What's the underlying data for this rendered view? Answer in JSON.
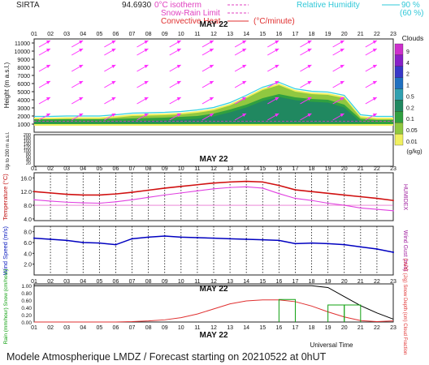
{
  "header": {
    "station": "SIRTA",
    "elevation_text": "94.6930",
    "legend": {
      "isotherm": "0°C isotherm",
      "snow_rain": "Snow-Rain Limit",
      "convective": "Convective Heat",
      "convective_unit": "(°C/minute)",
      "rh": "Relative Humidity",
      "rh90": "90 %",
      "rh60": "(60 %)"
    }
  },
  "footer": "Modele Atmospherique LMDZ / Forecast starting on 20210522 at 0hUT",
  "date_label": "MAY 22",
  "hours": [
    "01",
    "02",
    "03",
    "04",
    "05",
    "06",
    "07",
    "08",
    "09",
    "10",
    "11",
    "12",
    "13",
    "14",
    "15",
    "16",
    "17",
    "18",
    "19",
    "20",
    "21",
    "22",
    "23"
  ],
  "hour_axis_labels": [
    "01",
    "02",
    "03",
    "04",
    "05",
    "06",
    "07",
    "08",
    "09",
    "10",
    "11",
    "12",
    "13",
    "14",
    "15",
    "16",
    "17",
    "18",
    "19",
    "20",
    "21",
    "22",
    "23"
  ],
  "colors": {
    "temperature": "#d01010",
    "humidex": "#e040e0",
    "wind": "#0000c0",
    "rain": "#10a010",
    "cape": "#e03030",
    "cloud_fraction": "#000000",
    "relative_humidity": "#30d0e0",
    "isotherm": "#e040c0",
    "wind_arrow": "#ff30ff",
    "axis_left": "#c01010",
    "axis_right": "#a020a0",
    "wind_axis": "#1020c0"
  },
  "chart_data": [
    {
      "type": "heatmap",
      "name": "clouds",
      "ylabel": "Height (m a.s.l.)",
      "ylabel_lower": "Up to 200 m a.s.l.",
      "yticks": [
        1000,
        2000,
        3000,
        4000,
        5000,
        6000,
        7000,
        8000,
        9000,
        10000,
        11000
      ],
      "lower_ticks": [
        20,
        40,
        60,
        80,
        100,
        120,
        140,
        160,
        180,
        200
      ],
      "colorbar_title": "Clouds",
      "colorbar_unit": "(g/kg)",
      "colorbar_levels": [
        {
          "label": "9",
          "color": "#cc30cc"
        },
        {
          "label": "4",
          "color": "#8820c8"
        },
        {
          "label": "2",
          "color": "#3838c8"
        },
        {
          "label": "1",
          "color": "#2070c0"
        },
        {
          "label": "0.5",
          "color": "#30a0b0"
        },
        {
          "label": "0.2",
          "color": "#208860"
        },
        {
          "label": "0.1",
          "color": "#30a040"
        },
        {
          "label": "0.05",
          "color": "#90c840"
        },
        {
          "label": "0.01",
          "color": "#f0f060"
        }
      ],
      "cloud_top_m": [
        1600,
        1600,
        1650,
        1650,
        1650,
        1800,
        2000,
        2050,
        2100,
        2200,
        2400,
        2700,
        3300,
        4200,
        5200,
        5800,
        5000,
        4700,
        4600,
        4200,
        1800,
        1600,
        1600
      ],
      "cloud_core_top_m": [
        1400,
        1400,
        1400,
        1400,
        1400,
        1450,
        1500,
        1550,
        1600,
        1700,
        1800,
        2100,
        2600,
        3200,
        4000,
        4500,
        4100,
        3900,
        3800,
        3200,
        1400,
        1300,
        1300
      ],
      "wind_arrow_heights_m": [
        2000,
        4000,
        6000,
        8000,
        10000,
        11000
      ]
    },
    {
      "type": "line",
      "name": "temperature",
      "ylabel": "Temperature (°C)",
      "ylabel_right": "HUMIDEX",
      "yticks": [
        4.0,
        8.0,
        12.0,
        16.0
      ],
      "ylim": [
        3.5,
        17.5
      ],
      "series": [
        {
          "name": "Temperature",
          "values": [
            12.0,
            11.6,
            11.2,
            11.0,
            11.0,
            11.3,
            11.8,
            12.4,
            13.0,
            13.5,
            14.0,
            14.5,
            14.8,
            15.0,
            14.8,
            13.8,
            12.5,
            12.0,
            11.5,
            11.0,
            10.5,
            10.0,
            9.4
          ]
        },
        {
          "name": "Humidex",
          "values": [
            9.6,
            9.2,
            8.9,
            8.7,
            8.6,
            9.0,
            9.6,
            10.3,
            11.0,
            11.6,
            12.2,
            12.8,
            13.2,
            13.4,
            13.0,
            11.4,
            10.0,
            9.4,
            8.6,
            8.0,
            7.2,
            6.8,
            6.4
          ]
        }
      ]
    },
    {
      "type": "line",
      "name": "wind",
      "ylabel": "Wind Speed (m/s)",
      "ylabel_right": "Wind Gust (m/s)",
      "yticks": [
        2.0,
        4.0,
        6.0,
        8.0
      ],
      "ylim": [
        0,
        9
      ],
      "series": [
        {
          "name": "Wind Speed",
          "values": [
            6.8,
            6.6,
            6.4,
            6.0,
            5.9,
            5.6,
            6.7,
            7.0,
            7.2,
            7.0,
            6.9,
            6.8,
            6.7,
            6.6,
            6.5,
            6.4,
            5.8,
            5.9,
            5.8,
            5.6,
            5.2,
            4.8,
            4.2
          ]
        }
      ]
    },
    {
      "type": "line",
      "name": "precip",
      "ylabel": "Rain (mm/hour) Snow (cm/hour)",
      "ylabel_right": "CAPE (J/g) Snow Depth (cm) Cloud Fraction",
      "yticks": [
        0.0,
        0.2,
        0.4,
        0.6,
        0.8,
        1.0
      ],
      "yticklabels": [
        "0.00",
        "0.20",
        "0.40",
        "0.60",
        "0.80",
        "1.00"
      ],
      "ylim": [
        0,
        1.05
      ],
      "series": [
        {
          "name": "Cloud Fraction",
          "values": [
            1.0,
            1.0,
            1.0,
            1.0,
            1.0,
            1.0,
            1.0,
            1.0,
            1.0,
            1.0,
            1.0,
            1.0,
            1.0,
            1.0,
            1.0,
            1.0,
            1.0,
            1.0,
            0.95,
            0.7,
            0.45,
            0.25,
            0.08
          ]
        },
        {
          "name": "CAPE",
          "values": [
            0.0,
            0.0,
            0.0,
            0.0,
            0.0,
            0.0,
            0.01,
            0.03,
            0.06,
            0.12,
            0.22,
            0.36,
            0.5,
            0.58,
            0.61,
            0.61,
            0.56,
            0.44,
            0.28,
            0.14,
            0.04,
            0.01,
            0.03
          ]
        },
        {
          "name": "Rain",
          "bars": [
            {
              "start": 15,
              "end": 16,
              "value": 0.62
            },
            {
              "start": 18,
              "end": 19,
              "value": 0.47
            },
            {
              "start": 19,
              "end": 20,
              "value": 0.47
            }
          ]
        }
      ]
    }
  ],
  "universal_time_label": "Universal Time"
}
